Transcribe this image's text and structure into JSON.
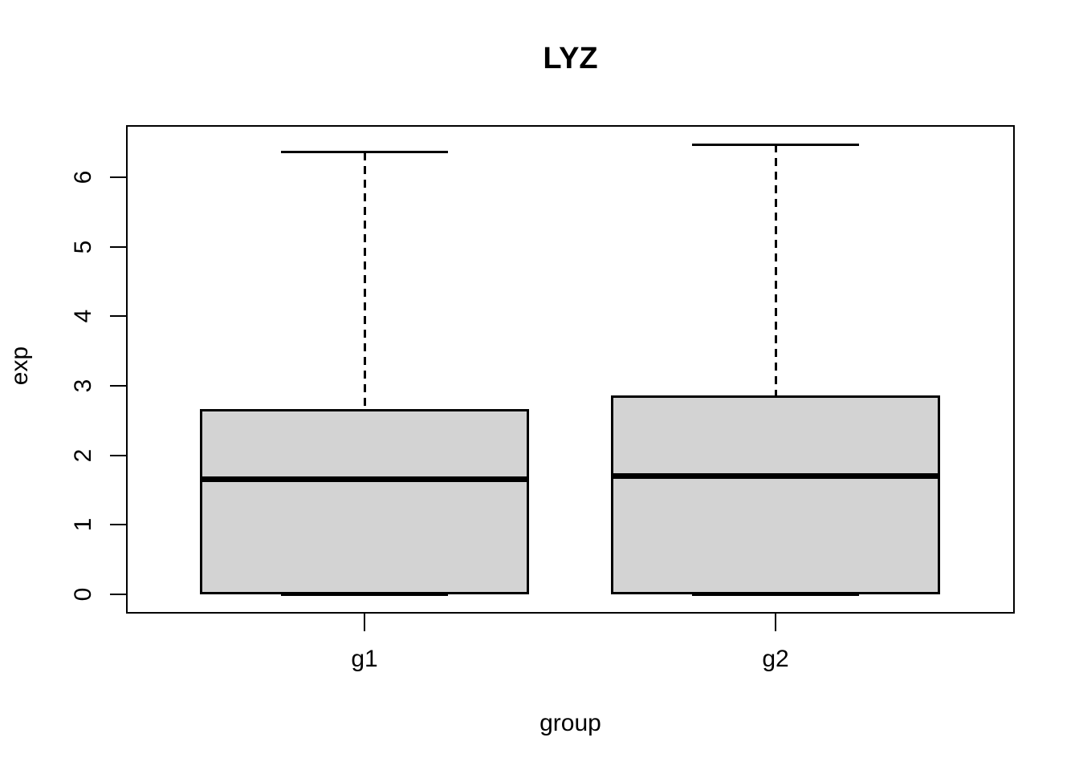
{
  "chart_data": {
    "type": "boxplot",
    "title": "LYZ",
    "xlabel": "group",
    "ylabel": "exp",
    "categories": [
      "g1",
      "g2"
    ],
    "yticks": [
      0,
      1,
      2,
      3,
      4,
      5,
      6
    ],
    "ylim": [
      0,
      6.75
    ],
    "grid": false,
    "legend": "none",
    "box_fill_color": "#d3d3d3",
    "line_color": "#000000",
    "whisker_style": "dashed",
    "series": [
      {
        "name": "g1",
        "min": 0,
        "q1": 0,
        "median": 1.66,
        "q3": 2.66,
        "max": 6.36,
        "whisker_low": 0,
        "whisker_high": 6.36
      },
      {
        "name": "g2",
        "min": 0,
        "q1": 0,
        "median": 1.7,
        "q3": 2.86,
        "max": 6.47,
        "whisker_low": 0,
        "whisker_high": 6.47
      }
    ]
  }
}
